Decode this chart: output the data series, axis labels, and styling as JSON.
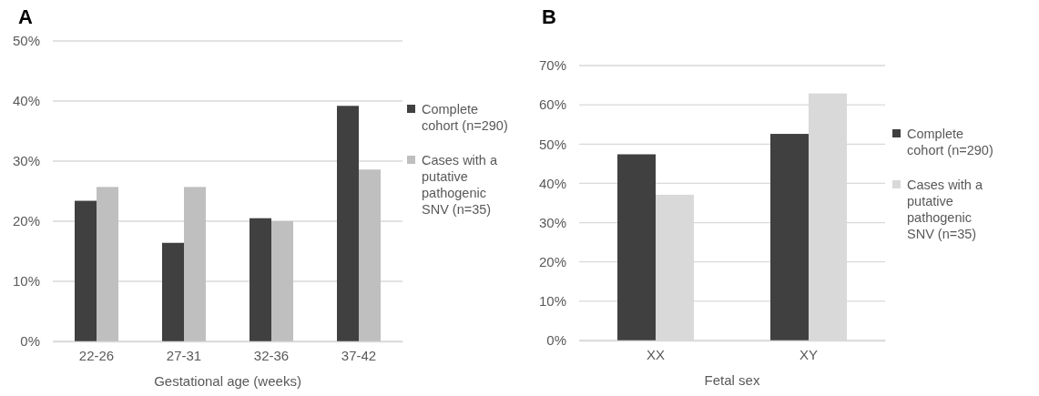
{
  "chart_data": [
    {
      "type": "bar",
      "title": "A",
      "xlabel": "Gestational age (weeks)",
      "categories": [
        "22-26",
        "27-31",
        "32-36",
        "37-42"
      ],
      "series": [
        {
          "name": "Complete cohort (n=290)",
          "color": "#404040",
          "values": [
            23.4,
            16.4,
            20.5,
            39.2
          ]
        },
        {
          "name": "Cases with a putative pathogenic SNV (n=35)",
          "color": "#bfbfbf",
          "values": [
            25.7,
            25.7,
            20.0,
            28.6
          ]
        }
      ],
      "ylim": [
        0,
        50
      ],
      "yticks": [
        {
          "value": 0,
          "label": "0%"
        },
        {
          "value": 10,
          "label": "10%"
        },
        {
          "value": 20,
          "label": "20%"
        },
        {
          "value": 30,
          "label": "30%"
        },
        {
          "value": 40,
          "label": "40%"
        },
        {
          "value": 50,
          "label": "50%"
        }
      ],
      "grid": "y",
      "legend": "right"
    },
    {
      "type": "bar",
      "title": "B",
      "xlabel": "Fetal sex",
      "categories": [
        "XX",
        "XY"
      ],
      "series": [
        {
          "name": "Complete cohort (n=290)",
          "color": "#404040",
          "values": [
            47.4,
            52.6
          ]
        },
        {
          "name": "Cases with a putative pathogenic SNV (n=35)",
          "color": "#d9d9d9",
          "values": [
            37.1,
            62.9
          ]
        }
      ],
      "ylim": [
        0,
        70
      ],
      "yticks": [
        {
          "value": 0,
          "label": "0%"
        },
        {
          "value": 10,
          "label": "10%"
        },
        {
          "value": 20,
          "label": "20%"
        },
        {
          "value": 30,
          "label": "30%"
        },
        {
          "value": 40,
          "label": "40%"
        },
        {
          "value": 50,
          "label": "50%"
        },
        {
          "value": 60,
          "label": "60%"
        },
        {
          "value": 70,
          "label": "70%"
        }
      ],
      "grid": "y",
      "legend": "right"
    }
  ]
}
